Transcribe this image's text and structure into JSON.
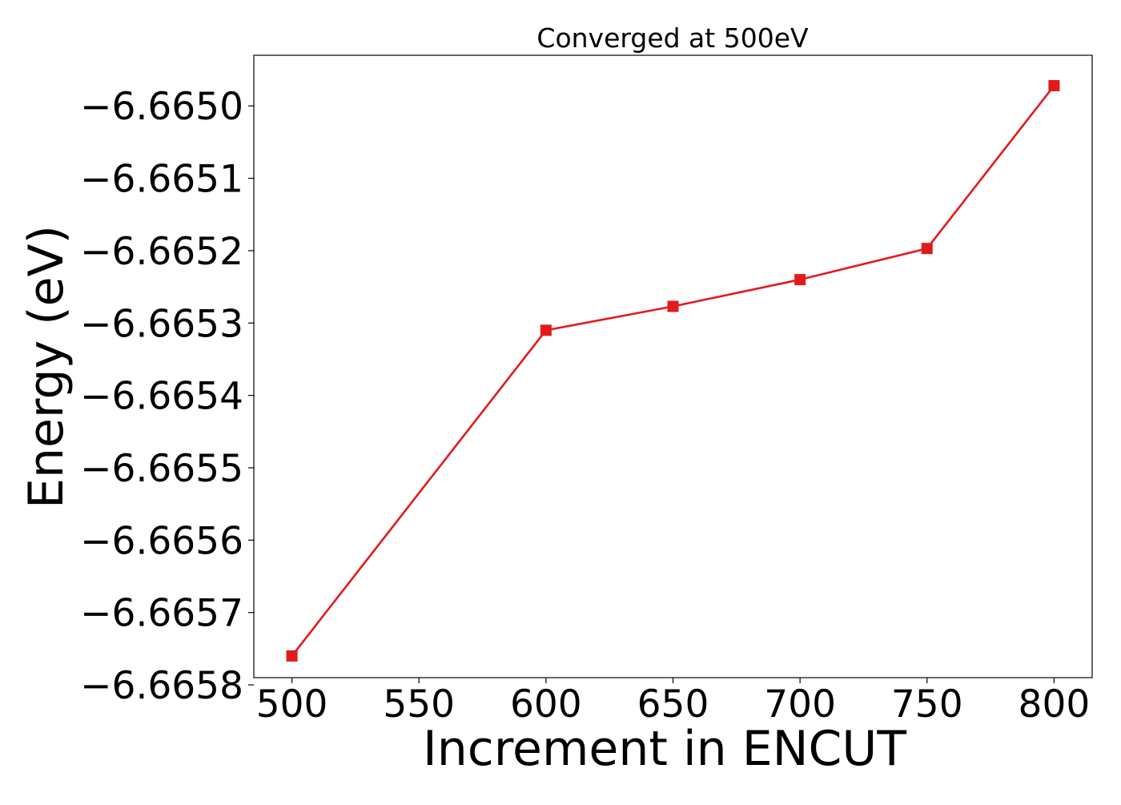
{
  "chart_data": {
    "type": "line",
    "title": "Converged at 500eV",
    "xlabel": "Increment in ENCUT",
    "ylabel": "Energy (eV)",
    "xlim": [
      485,
      815
    ],
    "ylim": [
      -6.66579,
      -6.66493
    ],
    "xticks": [
      500,
      550,
      600,
      650,
      700,
      750,
      800
    ],
    "xtick_labels": [
      "500",
      "550",
      "600",
      "650",
      "700",
      "750",
      "800"
    ],
    "yticks": [
      -6.665,
      -6.6651,
      -6.6652,
      -6.6653,
      -6.6654,
      -6.6655,
      -6.6656,
      -6.6657,
      -6.6658
    ],
    "ytick_labels": [
      "−6.6650",
      "−6.6651",
      "−6.6652",
      "−6.6653",
      "−6.6654",
      "−6.6655",
      "−6.6656",
      "−6.6657",
      "−6.6658"
    ],
    "grid": false,
    "series": [
      {
        "color": "#e31a1c",
        "marker": "square",
        "x": [
          500,
          600,
          650,
          700,
          750,
          800
        ],
        "y": [
          -6.66576,
          -6.66531,
          -6.665277,
          -6.66524,
          -6.665197,
          -6.664972
        ]
      }
    ]
  }
}
